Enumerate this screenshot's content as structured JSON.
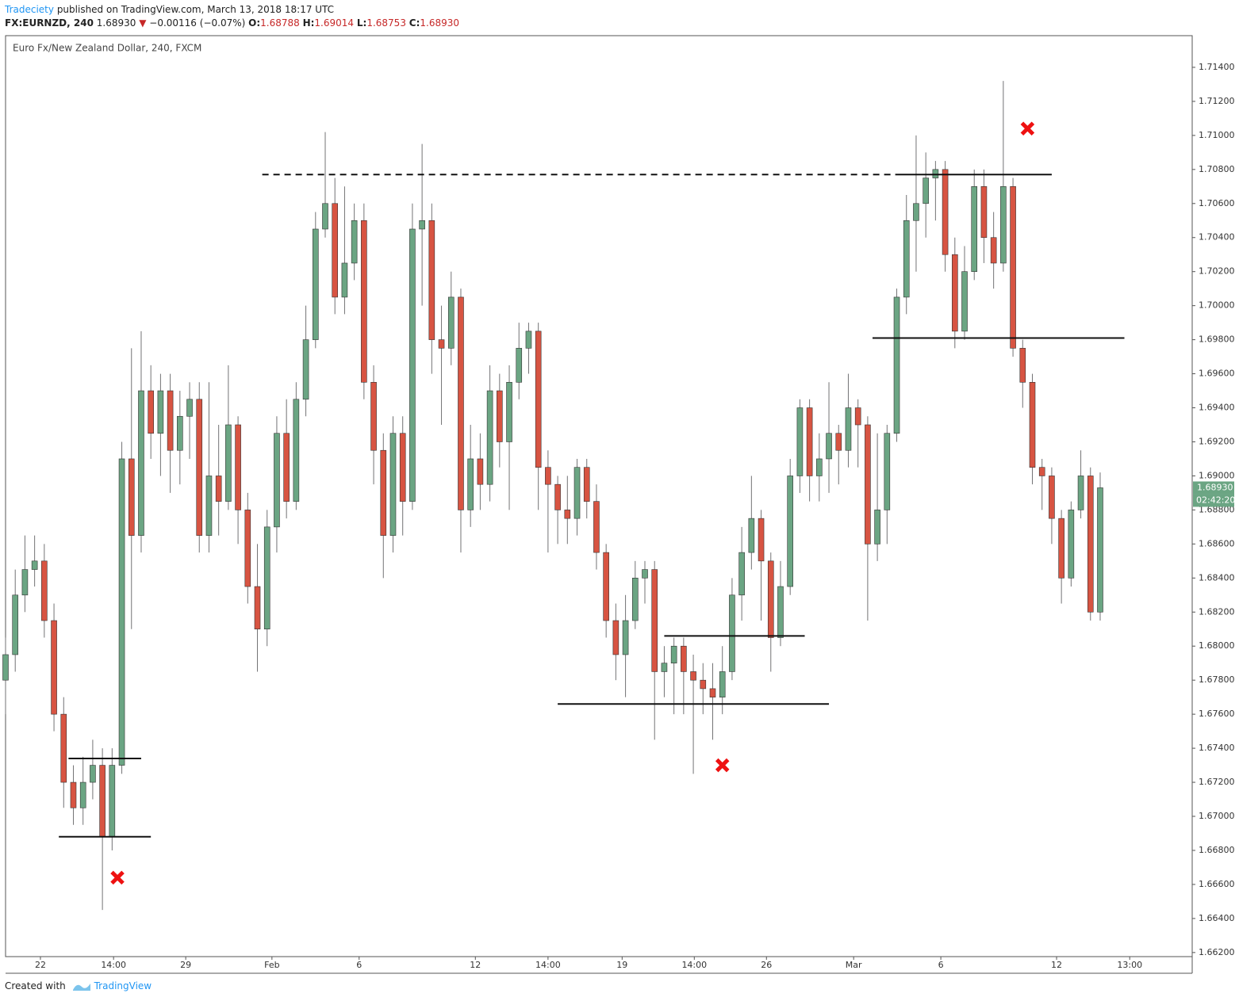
{
  "header": {
    "author": "Tradeciety",
    "published": "published on TradingView.com, March 13, 2018 18:17 UTC",
    "symbol": "FX:EURNZD, 240",
    "price": "1.68930",
    "arrow": "▼",
    "change": "−0.00116 (−0.07%)",
    "o_label": "O:",
    "o": "1.68788",
    "h_label": "H:",
    "h": "1.69014",
    "l_label": "L:",
    "l": "1.68753",
    "c_label": "C:",
    "c": "1.68930"
  },
  "footer": {
    "text": "Created with",
    "brand": "TradingView"
  },
  "chart_data": {
    "type": "candlestick",
    "title": "Euro Fx/New Zealand Dollar, 240, FXCM",
    "up_color": "#6ba583",
    "down_color": "#d75442",
    "wick_color": "#737375",
    "xlim": [
      0,
      245
    ],
    "ylim": [
      1.66176,
      1.71586
    ],
    "xticks": [
      {
        "value": 7.2,
        "label": "22"
      },
      {
        "value": 22.3,
        "label": "14:00"
      },
      {
        "value": 37.2,
        "label": "29"
      },
      {
        "value": 55.0,
        "label": "Feb"
      },
      {
        "value": 73.0,
        "label": "6"
      },
      {
        "value": 97.0,
        "label": "12"
      },
      {
        "value": 112.0,
        "label": "14:00"
      },
      {
        "value": 127.3,
        "label": "19"
      },
      {
        "value": 142.2,
        "label": "14:00"
      },
      {
        "value": 157.1,
        "label": "26"
      },
      {
        "value": 175.1,
        "label": "Mar"
      },
      {
        "value": 193.1,
        "label": "6"
      },
      {
        "value": 217.0,
        "label": "12"
      },
      {
        "value": 232.1,
        "label": "13:00"
      }
    ],
    "yticks": [
      {
        "value": 1.662,
        "label": "1.66200"
      },
      {
        "value": 1.664,
        "label": "1.66400"
      },
      {
        "value": 1.666,
        "label": "1.66600"
      },
      {
        "value": 1.668,
        "label": "1.66800"
      },
      {
        "value": 1.67,
        "label": "1.67000"
      },
      {
        "value": 1.672,
        "label": "1.67200"
      },
      {
        "value": 1.674,
        "label": "1.67400"
      },
      {
        "value": 1.676,
        "label": "1.67600"
      },
      {
        "value": 1.678,
        "label": "1.67800"
      },
      {
        "value": 1.68,
        "label": "1.68000"
      },
      {
        "value": 1.682,
        "label": "1.68200"
      },
      {
        "value": 1.684,
        "label": "1.68400"
      },
      {
        "value": 1.686,
        "label": "1.68600"
      },
      {
        "value": 1.688,
        "label": "1.68800"
      },
      {
        "value": 1.69,
        "label": "1.69000"
      },
      {
        "value": 1.692,
        "label": "1.69200"
      },
      {
        "value": 1.694,
        "label": "1.69400"
      },
      {
        "value": 1.696,
        "label": "1.69600"
      },
      {
        "value": 1.698,
        "label": "1.69800"
      },
      {
        "value": 1.7,
        "label": "1.70000"
      },
      {
        "value": 1.702,
        "label": "1.70200"
      },
      {
        "value": 1.704,
        "label": "1.70400"
      },
      {
        "value": 1.706,
        "label": "1.70600"
      },
      {
        "value": 1.708,
        "label": "1.70800"
      },
      {
        "value": 1.71,
        "label": "1.71000"
      },
      {
        "value": 1.712,
        "label": "1.71200"
      },
      {
        "value": 1.714,
        "label": "1.71400"
      }
    ],
    "x": [
      0,
      2,
      4,
      6,
      8,
      10,
      12,
      14,
      16,
      18,
      20,
      22,
      24,
      26,
      28,
      30,
      32,
      34,
      36,
      38,
      40,
      42,
      44,
      46,
      48,
      50,
      52,
      54,
      56,
      58,
      60,
      62,
      64,
      66,
      68,
      70,
      72,
      74,
      76,
      78,
      80,
      82,
      84,
      86,
      88,
      90,
      92,
      94,
      96,
      98,
      100,
      102,
      104,
      106,
      108,
      110,
      112,
      114,
      116,
      118,
      120,
      122,
      124,
      126,
      128,
      130,
      132,
      134,
      136,
      138,
      140,
      142,
      144,
      146,
      148,
      150,
      152,
      154,
      156,
      158,
      160,
      162,
      164,
      166,
      168,
      170,
      172,
      174,
      176,
      178,
      180,
      182,
      184,
      186,
      188,
      190,
      192,
      194,
      196,
      198,
      200,
      202,
      204,
      206,
      208,
      210,
      212,
      214,
      216,
      218,
      220,
      222,
      224,
      226
    ],
    "open": [
      1.678,
      1.6795,
      1.683,
      1.6845,
      1.685,
      1.6815,
      1.676,
      1.672,
      1.6705,
      1.672,
      1.673,
      1.6688,
      1.673,
      1.691,
      1.6865,
      1.695,
      1.6925,
      1.695,
      1.6915,
      1.6935,
      1.6945,
      1.6865,
      1.69,
      1.6885,
      1.693,
      1.688,
      1.6835,
      1.681,
      1.687,
      1.6925,
      1.6885,
      1.6945,
      1.698,
      1.7045,
      1.706,
      1.7005,
      1.7025,
      1.705,
      1.6955,
      1.6915,
      1.6865,
      1.6925,
      1.6885,
      1.7045,
      1.705,
      1.698,
      1.6975,
      1.7005,
      1.688,
      1.691,
      1.6895,
      1.695,
      1.692,
      1.6955,
      1.6975,
      1.6985,
      1.6905,
      1.6895,
      1.688,
      1.6875,
      1.6905,
      1.6885,
      1.6855,
      1.6815,
      1.6795,
      1.6815,
      1.684,
      1.6845,
      1.6785,
      1.679,
      1.68,
      1.6785,
      1.678,
      1.6775,
      1.677,
      1.6785,
      1.683,
      1.6855,
      1.6875,
      1.685,
      1.6805,
      1.6835,
      1.69,
      1.694,
      1.69,
      1.691,
      1.6925,
      1.6915,
      1.694,
      1.693,
      1.686,
      1.688,
      1.6925,
      1.7005,
      1.705,
      1.706,
      1.7075,
      1.708,
      1.703,
      1.6985,
      1.702,
      1.707,
      1.704,
      1.7025,
      1.707,
      1.6975,
      1.6955,
      1.6905,
      1.69,
      1.6875,
      1.684,
      1.688,
      1.69,
      1.682
    ],
    "high": [
      1.6805,
      1.6845,
      1.6865,
      1.6865,
      1.686,
      1.6825,
      1.677,
      1.673,
      1.6735,
      1.6745,
      1.674,
      1.674,
      1.692,
      1.6975,
      1.6985,
      1.6965,
      1.696,
      1.696,
      1.695,
      1.6955,
      1.6955,
      1.6955,
      1.693,
      1.6965,
      1.6935,
      1.689,
      1.686,
      1.688,
      1.6935,
      1.6945,
      1.6955,
      1.7,
      1.7055,
      1.7102,
      1.7075,
      1.707,
      1.706,
      1.706,
      1.6965,
      1.6925,
      1.6935,
      1.6935,
      1.706,
      1.7095,
      1.706,
      1.7,
      1.702,
      1.701,
      1.693,
      1.6925,
      1.6965,
      1.696,
      1.6965,
      1.699,
      1.699,
      1.699,
      1.6915,
      1.69,
      1.69,
      1.691,
      1.691,
      1.6895,
      1.686,
      1.6825,
      1.683,
      1.685,
      1.685,
      1.685,
      1.68,
      1.6805,
      1.6805,
      1.6795,
      1.679,
      1.679,
      1.68,
      1.684,
      1.687,
      1.69,
      1.688,
      1.6855,
      1.685,
      1.691,
      1.6945,
      1.6945,
      1.6925,
      1.6955,
      1.693,
      1.696,
      1.6945,
      1.6935,
      1.6925,
      1.693,
      1.701,
      1.7065,
      1.71,
      1.709,
      1.7085,
      1.7085,
      1.704,
      1.7035,
      1.708,
      1.708,
      1.7055,
      1.7132,
      1.7075,
      1.698,
      1.696,
      1.691,
      1.6905,
      1.688,
      1.6885,
      1.6915,
      1.6905,
      1.6902
    ],
    "low": [
      1.676,
      1.6785,
      1.682,
      1.6835,
      1.6805,
      1.675,
      1.6705,
      1.6695,
      1.6695,
      1.671,
      1.6645,
      1.668,
      1.6725,
      1.681,
      1.6855,
      1.691,
      1.69,
      1.689,
      1.6895,
      1.691,
      1.6855,
      1.6855,
      1.6865,
      1.688,
      1.686,
      1.6825,
      1.6785,
      1.68,
      1.6855,
      1.6875,
      1.688,
      1.6935,
      1.6975,
      1.704,
      1.6995,
      1.6995,
      1.7015,
      1.6945,
      1.6895,
      1.684,
      1.6855,
      1.6865,
      1.688,
      1.7,
      1.696,
      1.693,
      1.6965,
      1.6855,
      1.687,
      1.688,
      1.6885,
      1.6905,
      1.688,
      1.6945,
      1.696,
      1.688,
      1.6855,
      1.686,
      1.686,
      1.6865,
      1.6875,
      1.6845,
      1.6805,
      1.678,
      1.677,
      1.681,
      1.6825,
      1.6745,
      1.677,
      1.676,
      1.676,
      1.6725,
      1.676,
      1.6745,
      1.676,
      1.678,
      1.6815,
      1.6845,
      1.6815,
      1.6785,
      1.68,
      1.683,
      1.689,
      1.6885,
      1.6885,
      1.689,
      1.6895,
      1.6905,
      1.6905,
      1.6815,
      1.685,
      1.686,
      1.692,
      1.6995,
      1.702,
      1.704,
      1.705,
      1.702,
      1.6975,
      1.698,
      1.7015,
      1.7025,
      1.701,
      1.702,
      1.697,
      1.694,
      1.6895,
      1.688,
      1.686,
      1.6825,
      1.6835,
      1.6875,
      1.6815,
      1.6815
    ],
    "close": [
      1.6795,
      1.683,
      1.6845,
      1.685,
      1.6815,
      1.676,
      1.672,
      1.6705,
      1.672,
      1.673,
      1.6688,
      1.673,
      1.691,
      1.6865,
      1.695,
      1.6925,
      1.695,
      1.6915,
      1.6935,
      1.6945,
      1.6865,
      1.69,
      1.6885,
      1.693,
      1.688,
      1.6835,
      1.681,
      1.687,
      1.6925,
      1.6885,
      1.6945,
      1.698,
      1.7045,
      1.706,
      1.7005,
      1.7025,
      1.705,
      1.6955,
      1.6915,
      1.6865,
      1.6925,
      1.6885,
      1.7045,
      1.705,
      1.698,
      1.6975,
      1.7005,
      1.688,
      1.691,
      1.6895,
      1.695,
      1.692,
      1.6955,
      1.6975,
      1.6985,
      1.6905,
      1.6895,
      1.688,
      1.6875,
      1.6905,
      1.6885,
      1.6855,
      1.6815,
      1.6795,
      1.6815,
      1.684,
      1.6845,
      1.6785,
      1.679,
      1.68,
      1.6785,
      1.678,
      1.6775,
      1.677,
      1.6785,
      1.683,
      1.6855,
      1.6875,
      1.685,
      1.6805,
      1.6835,
      1.69,
      1.694,
      1.69,
      1.691,
      1.6925,
      1.6915,
      1.694,
      1.693,
      1.686,
      1.688,
      1.6925,
      1.7005,
      1.705,
      1.706,
      1.7075,
      1.708,
      1.703,
      1.6985,
      1.702,
      1.707,
      1.704,
      1.7025,
      1.707,
      1.6975,
      1.6955,
      1.6905,
      1.69,
      1.6875,
      1.684,
      1.688,
      1.69,
      1.682,
      1.6893
    ],
    "levels": [
      {
        "value": 1.7077,
        "x0": 53,
        "x1": 184,
        "style": "dashed"
      },
      {
        "value": 1.7077,
        "x0": 184,
        "x1": 216,
        "style": "solid"
      },
      {
        "value": 1.6981,
        "x0": 179,
        "x1": 231,
        "style": "solid"
      },
      {
        "value": 1.6806,
        "x0": 136,
        "x1": 165,
        "style": "solid"
      },
      {
        "value": 1.6766,
        "x0": 114,
        "x1": 170,
        "style": "solid"
      },
      {
        "value": 1.6734,
        "x0": 13,
        "x1": 28,
        "style": "solid"
      },
      {
        "value": 1.6688,
        "x0": 11,
        "x1": 30,
        "style": "solid"
      }
    ],
    "markers": {
      "color": "#ee1111",
      "x": [
        23.1,
        148,
        211
      ],
      "values": [
        1.6664,
        1.673,
        1.7104
      ]
    },
    "last_price": {
      "value": 1.6893,
      "label": "1.68930"
    },
    "countdown": "02:42:20"
  }
}
